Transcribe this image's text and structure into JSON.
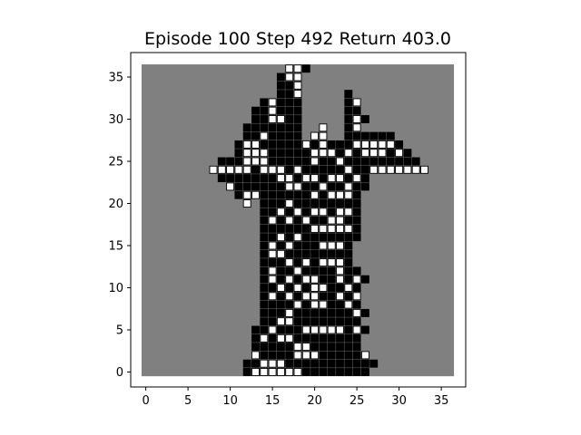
{
  "figure": {
    "title": "Episode 100 Step 492 Return 403.0"
  },
  "chart_data": {
    "type": "heatmap",
    "grid_size": 37,
    "xlim": [
      0,
      36
    ],
    "ylim": [
      0,
      36
    ],
    "x_ticks": [
      0,
      5,
      10,
      15,
      20,
      25,
      30,
      35
    ],
    "y_ticks": [
      0,
      5,
      10,
      15,
      20,
      25,
      30,
      35
    ],
    "x_tick_labels": [
      "0",
      "5",
      "10",
      "15",
      "20",
      "25",
      "30",
      "35"
    ],
    "y_tick_labels": [
      "0",
      "5",
      "10",
      "15",
      "20",
      "25",
      "30",
      "35"
    ],
    "colors": {
      "background": "#808080",
      "black_cell": "#000000",
      "white_cell": "#ffffff",
      "cell_border": "#000000"
    },
    "cells": {
      "36": {
        "B": [
          19
        ],
        "W": [
          17,
          18
        ]
      },
      "35": {
        "B": [
          16
        ],
        "W": [
          17,
          18
        ]
      },
      "34": {
        "B": [
          16,
          17
        ],
        "W": [
          18
        ]
      },
      "33": {
        "B": [
          16,
          17,
          24
        ],
        "W": [
          18
        ]
      },
      "32": {
        "B": [
          14,
          16,
          17,
          18,
          24
        ],
        "W": [
          15,
          25
        ]
      },
      "31": {
        "B": [
          13,
          14,
          16,
          17,
          18,
          24,
          25
        ],
        "W": [
          15
        ]
      },
      "30": {
        "B": [
          13,
          14,
          17,
          18,
          24,
          26
        ],
        "W": [
          15,
          16,
          25
        ]
      },
      "29": {
        "B": [
          12,
          13,
          14,
          15,
          16,
          17,
          18,
          24
        ],
        "W": [
          21,
          25
        ]
      },
      "28": {
        "B": [
          12,
          13,
          15,
          16,
          17,
          18,
          24,
          25,
          26,
          27,
          28,
          29
        ],
        "W": [
          14,
          20,
          21
        ]
      },
      "27": {
        "B": [
          11,
          14,
          15,
          16,
          17,
          18,
          20,
          22,
          23,
          24,
          30
        ],
        "W": [
          12,
          13,
          19,
          21,
          25,
          26,
          27,
          28,
          29
        ]
      },
      "26": {
        "B": [
          11,
          15,
          16,
          17,
          18,
          19,
          23,
          25,
          29,
          31
        ],
        "W": [
          12,
          13,
          14,
          20,
          21,
          22,
          24,
          26,
          27,
          28,
          30
        ]
      },
      "25": {
        "B": [
          9,
          10,
          11,
          15,
          16,
          17,
          18,
          19,
          21,
          22,
          24,
          25,
          26,
          27,
          28,
          29,
          30,
          31,
          32
        ],
        "W": [
          12,
          13,
          14,
          20,
          23
        ]
      },
      "24": {
        "B": [
          13,
          17,
          19,
          20,
          21,
          22,
          23,
          25,
          26
        ],
        "W": [
          8,
          9,
          10,
          11,
          12,
          14,
          15,
          16,
          18,
          24,
          27,
          28,
          29,
          30,
          31,
          32,
          33
        ]
      },
      "23": {
        "B": [
          9,
          10,
          11,
          12,
          13,
          14,
          15,
          18,
          21,
          24,
          26
        ],
        "W": [
          16,
          17,
          19,
          20,
          22,
          23,
          25
        ]
      },
      "22": {
        "B": [
          11,
          12,
          13,
          14,
          15,
          16,
          19,
          20,
          22,
          23,
          25,
          26
        ],
        "W": [
          10,
          17,
          18,
          21,
          24
        ]
      },
      "21": {
        "B": [
          11,
          14,
          15,
          16,
          17,
          18,
          19,
          21,
          25
        ],
        "W": [
          12,
          13,
          20,
          22,
          23,
          24
        ]
      },
      "20": {
        "B": [
          14,
          15,
          16,
          18,
          19,
          20,
          21,
          22,
          23,
          24,
          25
        ],
        "W": [
          12,
          17
        ]
      },
      "19": {
        "B": [
          14,
          15,
          17,
          19,
          22,
          25
        ],
        "W": [
          16,
          18,
          20,
          21,
          23,
          24
        ]
      },
      "18": {
        "B": [
          14,
          16,
          18,
          20,
          21,
          24,
          25
        ],
        "W": [
          15,
          17,
          19,
          22,
          23
        ]
      },
      "17": {
        "B": [
          14,
          15,
          16,
          17,
          18,
          19,
          25
        ],
        "W": [
          20,
          21,
          22,
          23,
          24
        ]
      },
      "16": {
        "B": [
          14,
          15,
          17,
          19,
          20,
          21,
          22,
          23,
          24,
          25
        ],
        "W": [
          16,
          18
        ]
      },
      "15": {
        "B": [
          14,
          16,
          18,
          19,
          20,
          24
        ],
        "W": [
          15,
          17,
          21,
          22,
          23
        ]
      },
      "14": {
        "B": [
          14,
          17,
          18,
          19,
          20,
          21,
          22,
          23,
          24
        ],
        "W": [
          15,
          16
        ]
      },
      "13": {
        "B": [
          14,
          15,
          16,
          18,
          20,
          24
        ],
        "W": [
          17,
          19,
          21,
          22,
          23
        ]
      },
      "12": {
        "B": [
          14,
          16,
          17,
          19,
          20,
          21,
          22,
          24,
          25
        ],
        "W": [
          15,
          18,
          23
        ]
      },
      "11": {
        "B": [
          14,
          16,
          18,
          21,
          22,
          24,
          26
        ],
        "W": [
          15,
          17,
          19,
          20,
          23,
          25
        ]
      },
      "10": {
        "B": [
          14,
          15,
          17,
          19,
          22,
          23,
          25
        ],
        "W": [
          16,
          18,
          20,
          21,
          24
        ]
      },
      "9": {
        "B": [
          14,
          16,
          18,
          21,
          22,
          24
        ],
        "W": [
          15,
          17,
          19,
          20,
          23,
          25
        ]
      },
      "8": {
        "B": [
          14,
          15,
          16,
          17,
          19,
          22,
          23,
          25
        ],
        "W": [
          18,
          20,
          21,
          24
        ]
      },
      "7": {
        "B": [
          14,
          15,
          16,
          18,
          19,
          20,
          21,
          22,
          23,
          24,
          26
        ],
        "W": [
          17,
          25
        ]
      },
      "6": {
        "B": [
          14,
          15,
          18,
          19,
          20,
          21,
          22,
          23,
          24,
          25
        ],
        "W": [
          16,
          17
        ]
      },
      "5": {
        "B": [
          13,
          14,
          16,
          17,
          18,
          24,
          26
        ],
        "W": [
          15,
          19,
          20,
          21,
          22,
          23,
          25
        ]
      },
      "4": {
        "B": [
          13,
          15,
          18,
          19,
          20,
          21,
          22,
          23,
          24,
          25
        ],
        "W": [
          14,
          16,
          17
        ]
      },
      "3": {
        "B": [
          13,
          14,
          15,
          16,
          17,
          20,
          21,
          22,
          23,
          24,
          25
        ],
        "W": [
          18,
          19
        ]
      },
      "2": {
        "B": [
          14,
          15,
          16,
          17,
          21,
          22,
          23,
          24,
          25
        ],
        "W": [
          13,
          18,
          19,
          20,
          26
        ]
      },
      "1": {
        "B": [
          12,
          13,
          17,
          18,
          19,
          20,
          21,
          22,
          23,
          24,
          25,
          26,
          27
        ],
        "W": [
          14,
          15,
          16
        ]
      },
      "0": {
        "B": [
          12,
          19,
          20,
          21,
          22,
          23,
          24,
          25,
          26
        ],
        "W": [
          13,
          14,
          15,
          16,
          17,
          18
        ]
      }
    }
  }
}
